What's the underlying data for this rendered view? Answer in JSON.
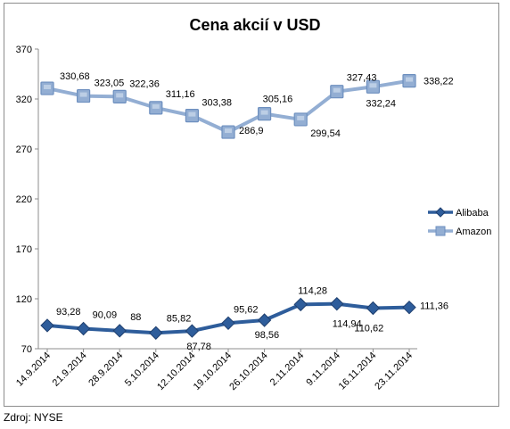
{
  "source_note": "Zdroj: NYSE",
  "chart_data": {
    "type": "line",
    "title": "Cena akcií v USD",
    "xlabel": "",
    "ylabel": "",
    "categories": [
      "14.9.2014",
      "21.9.2014",
      "28.9.2014",
      "5.10.2014",
      "12.10.2014",
      "19.10.2014",
      "26.10.2014",
      "2.11.2014",
      "9.11.2014",
      "16.11.2014",
      "23.11.2014"
    ],
    "ylim": [
      70,
      370
    ],
    "yticks": [
      70,
      120,
      170,
      220,
      270,
      320,
      370
    ],
    "grid": false,
    "legend_position": "right",
    "series": [
      {
        "name": "Alibaba",
        "marker": "diamond",
        "color": "#2e5d9b",
        "values": [
          93.28,
          90.09,
          88,
          85.82,
          87.78,
          95.62,
          98.56,
          114.28,
          114.94,
          110.62,
          111.36
        ],
        "labels": [
          "93,28",
          "90,09",
          "88",
          "85,82",
          "87,78",
          "95,62",
          "98,56",
          "114,28",
          "114,94",
          "110,62",
          "111,36"
        ]
      },
      {
        "name": "Amazon",
        "marker": "square",
        "color": "#93aed3",
        "values": [
          330.68,
          323.05,
          322.36,
          311.16,
          303.38,
          286.9,
          305.16,
          299.54,
          327.43,
          332.24,
          338.22
        ],
        "labels": [
          "330,68",
          "323,05",
          "322,36",
          "311,16",
          "303,38",
          "286,9",
          "305,16",
          "299,54",
          "327,43",
          "332,24",
          "338,22"
        ]
      }
    ]
  }
}
